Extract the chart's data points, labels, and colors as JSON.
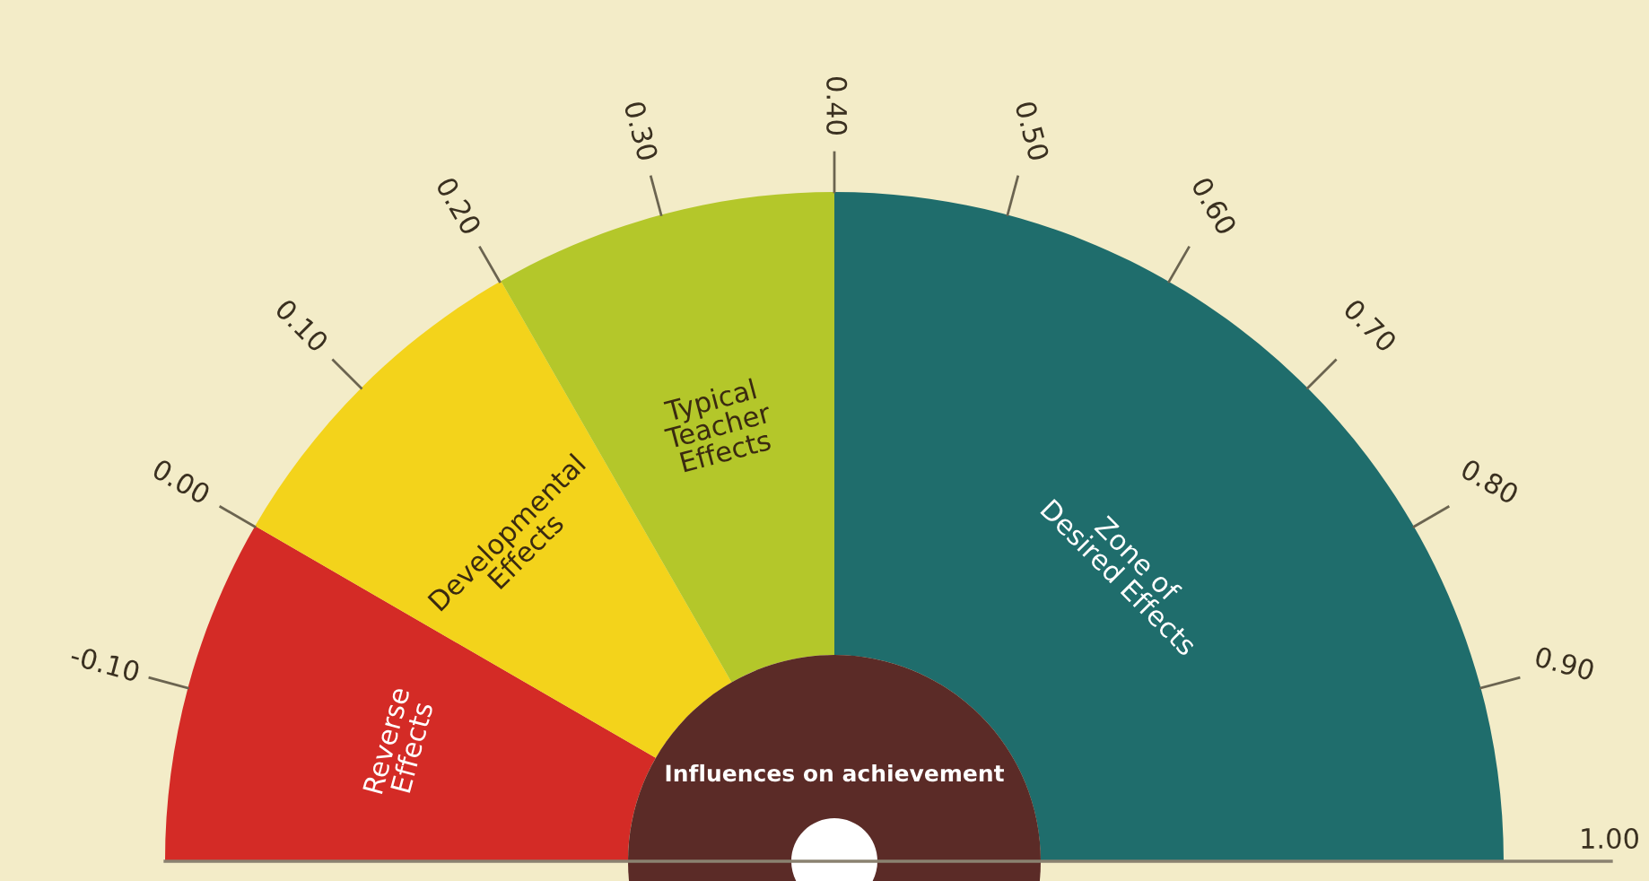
{
  "chart_data": {
    "type": "donut",
    "categories": [
      "Reverse\nEffects",
      "Developmental\nEffects",
      "Typical\nTeacher\nEffects",
      "Zone of\nDesired Effects"
    ],
    "values": [
      16.7,
      16.7,
      16.6,
      50.0
    ],
    "colors": [
      "#d42b26",
      "#f3d31b",
      "#b4c72a",
      "#1f6d6c"
    ],
    "annotations": [
      "-0.10",
      "0.00",
      "0.10",
      "0.20",
      "0.30",
      "0.40",
      "0.50",
      "0.60",
      "0.70",
      "0.80",
      "0.90",
      "1.00",
      "Influences on achievement"
    ]
  }
}
